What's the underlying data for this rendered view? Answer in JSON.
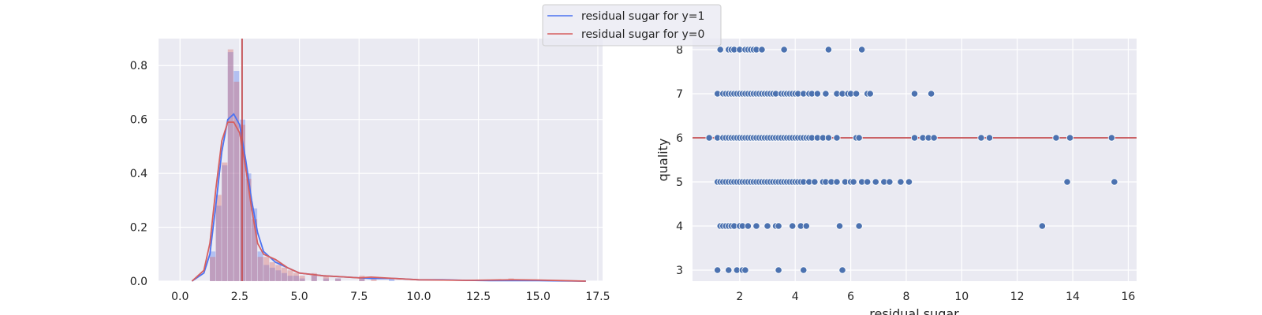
{
  "chart_data": [
    {
      "type": "histogram",
      "title": "",
      "xlabel": "",
      "ylabel": "",
      "xlim": [
        -0.9,
        17.7
      ],
      "ylim": [
        0,
        0.9
      ],
      "x_ticks": [
        0.0,
        2.5,
        5.0,
        7.5,
        10.0,
        12.5,
        15.0,
        17.5
      ],
      "x_tick_labels": [
        "0.0",
        "2.5",
        "5.0",
        "7.5",
        "10.0",
        "12.5",
        "15.0",
        "17.5"
      ],
      "y_ticks": [
        0.0,
        0.2,
        0.4,
        0.6,
        0.8
      ],
      "y_tick_labels": [
        "0.0",
        "0.2",
        "0.4",
        "0.6",
        "0.8"
      ],
      "grid": true,
      "bin_width": 0.25,
      "legend_position": "top-center",
      "vertical_line": {
        "x": 2.6,
        "color": "#c44e52"
      },
      "series": [
        {
          "name": "residual sugar for y=1",
          "color": "#4c72f0",
          "hist_bins": [
            1.25,
            1.5,
            1.75,
            2.0,
            2.25,
            2.5,
            2.75,
            3.0,
            3.25,
            3.5,
            3.75,
            4.0,
            4.25,
            4.5,
            4.75,
            5.0,
            5.5,
            6.0,
            6.5,
            7.5,
            8.75
          ],
          "hist_values": [
            0.11,
            0.28,
            0.43,
            0.85,
            0.78,
            0.6,
            0.4,
            0.27,
            0.11,
            0.06,
            0.05,
            0.04,
            0.03,
            0.02,
            0.02,
            0.01,
            0.02,
            0.01,
            0.01,
            0.01,
            0.01
          ],
          "kde_x": [
            0.5,
            1.0,
            1.25,
            1.5,
            1.75,
            2.0,
            2.25,
            2.5,
            2.75,
            3.0,
            3.25,
            3.5,
            4.0,
            4.5,
            5.0,
            6.0,
            7.0,
            8.0,
            9.0,
            10.0,
            11.0,
            12.0,
            13.0,
            14.0,
            15.0,
            16.0,
            17.0
          ],
          "kde_y": [
            0.0,
            0.03,
            0.1,
            0.28,
            0.48,
            0.6,
            0.62,
            0.58,
            0.45,
            0.3,
            0.18,
            0.11,
            0.07,
            0.05,
            0.03,
            0.02,
            0.015,
            0.01,
            0.01,
            0.005,
            0.005,
            0.003,
            0.002,
            0.002,
            0.002,
            0.001,
            0.0
          ]
        },
        {
          "name": "residual sugar for y=0",
          "color": "#d65f5f",
          "hist_bins": [
            1.25,
            1.5,
            1.75,
            2.0,
            2.25,
            2.5,
            2.75,
            3.0,
            3.25,
            3.5,
            3.75,
            4.0,
            4.25,
            4.5,
            4.75,
            5.0,
            5.5,
            6.0,
            6.5,
            7.5,
            8.0,
            13.75
          ],
          "hist_values": [
            0.09,
            0.32,
            0.44,
            0.86,
            0.74,
            0.58,
            0.38,
            0.23,
            0.09,
            0.09,
            0.07,
            0.06,
            0.05,
            0.04,
            0.03,
            0.02,
            0.03,
            0.02,
            0.01,
            0.02,
            0.01,
            0.01
          ],
          "kde_x": [
            0.5,
            1.0,
            1.25,
            1.5,
            1.75,
            2.0,
            2.25,
            2.5,
            2.75,
            3.0,
            3.25,
            3.5,
            4.0,
            4.5,
            5.0,
            6.0,
            7.0,
            7.5,
            8.0,
            9.0,
            10.0,
            11.0,
            12.0,
            13.0,
            14.0,
            15.0,
            16.0,
            17.0
          ],
          "kde_y": [
            0.0,
            0.04,
            0.14,
            0.34,
            0.52,
            0.59,
            0.59,
            0.55,
            0.42,
            0.27,
            0.14,
            0.1,
            0.08,
            0.05,
            0.03,
            0.02,
            0.015,
            0.012,
            0.015,
            0.01,
            0.005,
            0.004,
            0.003,
            0.004,
            0.005,
            0.004,
            0.002,
            0.0
          ]
        }
      ]
    },
    {
      "type": "scatter",
      "title": "",
      "xlabel": "residual sugar",
      "ylabel": "quality",
      "xlim": [
        0.3,
        16.3
      ],
      "ylim": [
        2.75,
        8.25
      ],
      "x_ticks": [
        2,
        4,
        6,
        8,
        10,
        12,
        14,
        16
      ],
      "x_tick_labels": [
        "2",
        "4",
        "6",
        "8",
        "10",
        "12",
        "14",
        "16"
      ],
      "y_ticks": [
        3,
        4,
        5,
        6,
        7,
        8
      ],
      "y_tick_labels": [
        "3",
        "4",
        "5",
        "6",
        "7",
        "8"
      ],
      "grid": true,
      "horizontal_line": {
        "y": 6,
        "color": "#c44e52"
      },
      "point_color": "#4c72b0",
      "points": [
        {
          "y": 8,
          "x": [
            1.3,
            1.6,
            1.7,
            1.8,
            2.0,
            2.2,
            2.3,
            2.4,
            2.5,
            2.6,
            2.8,
            3.6,
            5.2,
            6.4
          ]
        },
        {
          "y": 7,
          "x": [
            1.2,
            1.4,
            1.5,
            1.6,
            1.7,
            1.8,
            1.9,
            2.0,
            2.1,
            2.2,
            2.3,
            2.4,
            2.5,
            2.6,
            2.7,
            2.8,
            2.9,
            3.0,
            3.1,
            3.2,
            3.3,
            3.5,
            3.6,
            3.7,
            3.8,
            3.9,
            4.0,
            4.1,
            4.3,
            4.5,
            4.6,
            4.8,
            5.1,
            5.5,
            5.7,
            5.9,
            6.0,
            6.2,
            6.6,
            6.7,
            8.3,
            8.9
          ]
        },
        {
          "y": 6,
          "x": [
            0.9,
            1.2,
            1.4,
            1.5,
            1.6,
            1.7,
            1.8,
            1.9,
            2.0,
            2.1,
            2.2,
            2.3,
            2.4,
            2.5,
            2.6,
            2.7,
            2.8,
            2.9,
            3.0,
            3.1,
            3.2,
            3.3,
            3.4,
            3.5,
            3.6,
            3.7,
            3.8,
            3.9,
            4.0,
            4.1,
            4.2,
            4.3,
            4.4,
            4.5,
            4.6,
            4.8,
            5.0,
            5.2,
            5.5,
            6.2,
            6.3,
            8.3,
            8.6,
            8.8,
            9.0,
            10.7,
            11.0,
            13.4,
            13.9,
            15.4
          ]
        },
        {
          "y": 5,
          "x": [
            1.2,
            1.3,
            1.4,
            1.5,
            1.6,
            1.7,
            1.8,
            1.9,
            2.0,
            2.1,
            2.2,
            2.3,
            2.4,
            2.5,
            2.6,
            2.7,
            2.8,
            2.9,
            3.0,
            3.1,
            3.2,
            3.3,
            3.4,
            3.5,
            3.6,
            3.7,
            3.8,
            3.9,
            4.0,
            4.1,
            4.2,
            4.3,
            4.5,
            4.7,
            5.0,
            5.1,
            5.3,
            5.5,
            5.8,
            6.0,
            6.1,
            6.4,
            6.6,
            6.9,
            7.2,
            7.4,
            7.8,
            8.1,
            13.8,
            15.5
          ]
        },
        {
          "y": 4,
          "x": [
            1.3,
            1.4,
            1.5,
            1.6,
            1.7,
            1.8,
            2.0,
            2.1,
            2.3,
            2.6,
            3.0,
            3.3,
            3.4,
            3.9,
            4.2,
            4.4,
            5.6,
            6.3,
            12.9
          ]
        },
        {
          "y": 3,
          "x": [
            1.2,
            1.6,
            1.9,
            2.1,
            2.2,
            3.4,
            4.3,
            5.7
          ]
        }
      ]
    }
  ]
}
